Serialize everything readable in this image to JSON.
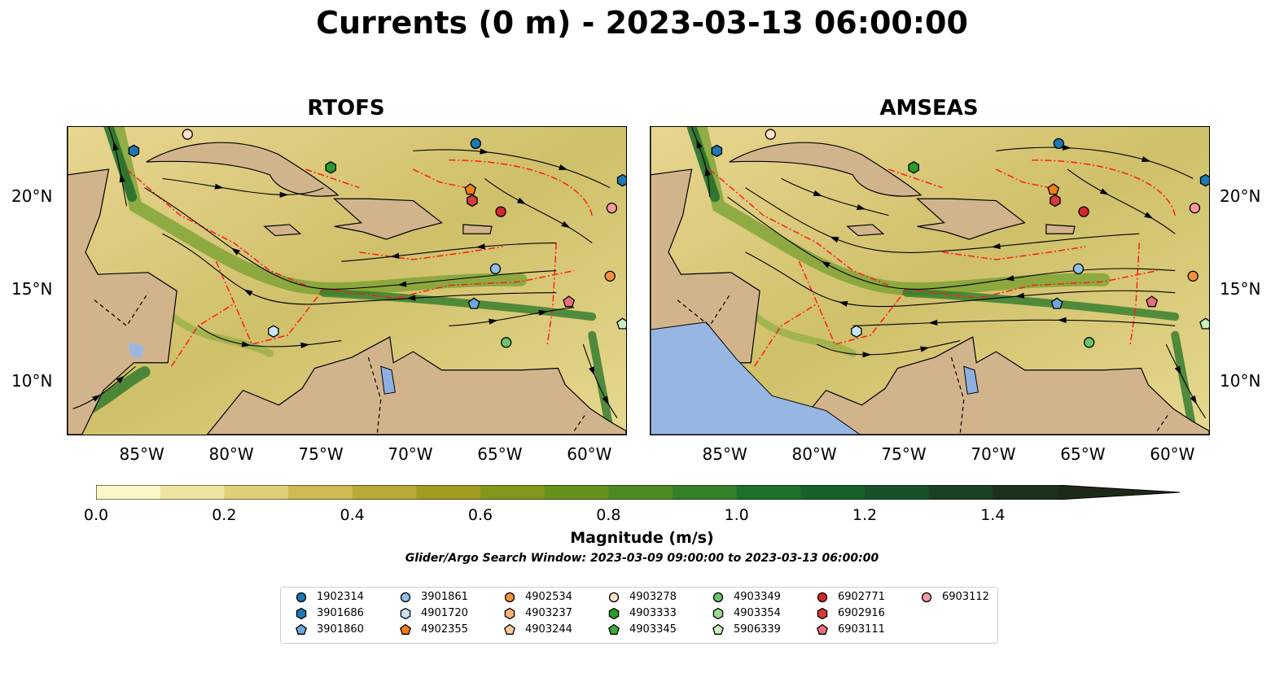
{
  "title": "Currents (0 m) - 2023-03-13 06:00:00",
  "panels": [
    {
      "title": "RTOFS"
    },
    {
      "title": "AMSEAS"
    }
  ],
  "axes": {
    "x_ticks": [
      "85°W",
      "80°W",
      "75°W",
      "70°W",
      "65°W",
      "60°W"
    ],
    "y_ticks": [
      "20°N",
      "15°N",
      "10°N"
    ]
  },
  "colorbar": {
    "label": "Magnitude (m/s)",
    "ticks": [
      "0.0",
      "0.2",
      "0.4",
      "0.6",
      "0.8",
      "1.0",
      "1.2",
      "1.4"
    ],
    "range": [
      0.0,
      1.5
    ],
    "extend": "max",
    "colors": [
      "#fdf7c8",
      "#efe3a0",
      "#e0cf7a",
      "#cdbb52",
      "#b9a938",
      "#a29b22",
      "#84951b",
      "#66911c",
      "#4d8a24",
      "#338026",
      "#1f6f2d",
      "#17612b",
      "#18502a",
      "#1b4022",
      "#1c301b"
    ]
  },
  "search_window": "Glider/Argo Search Window: 2023-03-09 09:00:00 to 2023-03-13 06:00:00",
  "legend": {
    "items": [
      {
        "label": "1902314",
        "marker": "circle",
        "color": "#1f77b4"
      },
      {
        "label": "3901686",
        "marker": "hexagon",
        "color": "#1f77b4"
      },
      {
        "label": "3901860",
        "marker": "pentagon",
        "color": "#6fa6dc"
      },
      {
        "label": "3901861",
        "marker": "circle",
        "color": "#8ec0ea"
      },
      {
        "label": "4901720",
        "marker": "hexagon",
        "color": "#c9e3f7"
      },
      {
        "label": "4902355",
        "marker": "pentagon",
        "color": "#f07f11"
      },
      {
        "label": "4902534",
        "marker": "circle",
        "color": "#f5923a"
      },
      {
        "label": "4903237",
        "marker": "hexagon",
        "color": "#f9b277"
      },
      {
        "label": "4903244",
        "marker": "pentagon",
        "color": "#fcc9a0"
      },
      {
        "label": "4903278",
        "marker": "circle",
        "color": "#fde0c8"
      },
      {
        "label": "4903333",
        "marker": "hexagon",
        "color": "#2a9c2a"
      },
      {
        "label": "4903345",
        "marker": "pentagon",
        "color": "#3faa3f"
      },
      {
        "label": "4903349",
        "marker": "circle",
        "color": "#6bc46b"
      },
      {
        "label": "4903354",
        "marker": "hexagon",
        "color": "#98dc8e"
      },
      {
        "label": "5906339",
        "marker": "pentagon",
        "color": "#c7f0bd"
      },
      {
        "label": "6902771",
        "marker": "circle",
        "color": "#d62728"
      },
      {
        "label": "6902916",
        "marker": "hexagon",
        "color": "#d93a3a"
      },
      {
        "label": "6903111",
        "marker": "pentagon",
        "color": "#e8707a"
      },
      {
        "label": "6903112",
        "marker": "circle",
        "color": "#f49aa0"
      }
    ]
  },
  "platforms": [
    {
      "id": "1902314",
      "lon": -66.5,
      "lat": 22.9
    },
    {
      "id": "3901686",
      "lon": -58.3,
      "lat": 20.9
    },
    {
      "id": "3901860",
      "lon": -66.6,
      "lat": 14.2
    },
    {
      "id": "3901861",
      "lon": -65.4,
      "lat": 16.1
    },
    {
      "id": "4901720",
      "lon": -77.8,
      "lat": 12.7
    },
    {
      "id": "4902355",
      "lon": -66.8,
      "lat": 20.4
    },
    {
      "id": "4902534",
      "lon": -59.0,
      "lat": 15.7
    },
    {
      "id": "4903278",
      "lon": -82.6,
      "lat": 23.4
    },
    {
      "id": "4903333",
      "lon": -74.6,
      "lat": 21.6
    },
    {
      "id": "4903349",
      "lon": -64.8,
      "lat": 12.1
    },
    {
      "id": "5906339",
      "lon": -58.3,
      "lat": 13.1
    },
    {
      "id": "6902771",
      "lon": -65.1,
      "lat": 19.2
    },
    {
      "id": "6902916",
      "lon": -66.7,
      "lat": 19.8
    },
    {
      "id": "6903111",
      "lon": -61.3,
      "lat": 14.3
    },
    {
      "id": "6903112",
      "lon": -58.9,
      "lat": 19.4
    },
    {
      "id": "3901686",
      "lon": -85.6,
      "lat": 22.5
    }
  ]
}
